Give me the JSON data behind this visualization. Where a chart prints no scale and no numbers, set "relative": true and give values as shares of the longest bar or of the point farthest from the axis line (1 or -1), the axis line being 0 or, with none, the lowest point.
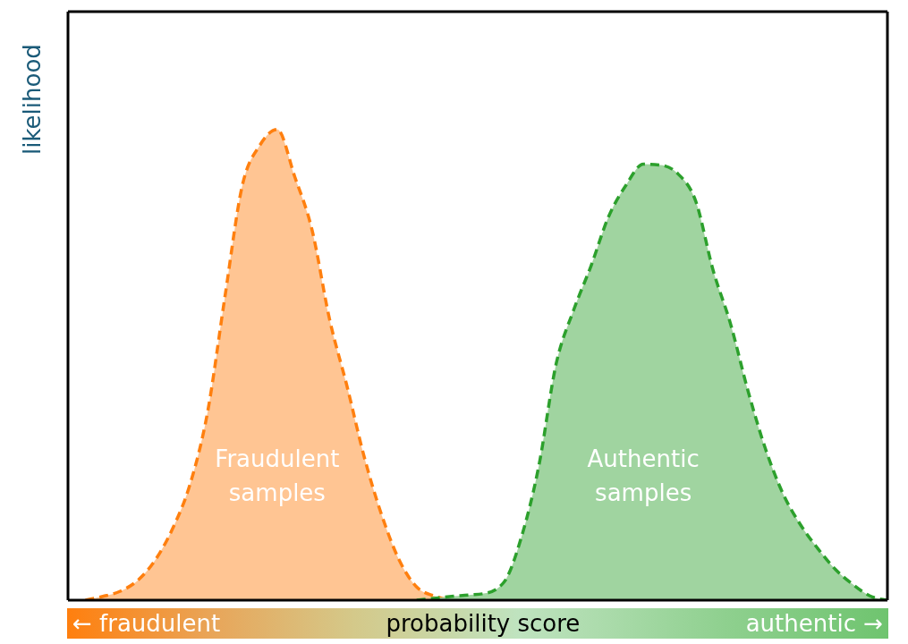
{
  "chart_data": {
    "type": "area",
    "relative": true,
    "xlabel": "probability score",
    "ylabel": "likelihood",
    "annotations": [
      "← fraudulent",
      "authentic →"
    ],
    "categories": [
      null,
      null,
      null,
      null,
      null,
      null,
      null,
      null,
      null,
      null,
      null,
      null,
      null,
      null,
      null,
      null,
      null,
      null,
      null,
      null,
      null,
      null,
      null,
      null,
      null,
      null,
      null,
      null,
      null,
      null,
      null,
      null,
      null,
      null,
      null,
      null,
      null,
      null,
      null,
      null,
      null,
      null,
      null,
      null,
      null,
      null,
      null,
      null
    ],
    "series": [
      {
        "name": "Fraudulent samples",
        "color": "#ff7f0e",
        "values": [
          null,
          0,
          0.008,
          0.019,
          0.042,
          0.085,
          0.152,
          0.246,
          0.398,
          0.644,
          0.881,
          0.966,
          1,
          0.9,
          0.786,
          0.597,
          0.455,
          0.303,
          0.18,
          0.085,
          0.028,
          0.009,
          0,
          null,
          null,
          null,
          null,
          null,
          null,
          null,
          null,
          null,
          null,
          null,
          null,
          null,
          null,
          null,
          null,
          null,
          null,
          null,
          null,
          null,
          null,
          null,
          null,
          null
        ]
      },
      {
        "name": "Authentic samples",
        "color": "#2ca02c",
        "values": [
          null,
          null,
          null,
          null,
          null,
          null,
          null,
          null,
          null,
          null,
          null,
          null,
          null,
          null,
          null,
          null,
          null,
          null,
          null,
          null,
          0,
          0.004,
          0.008,
          0.011,
          0.015,
          0.038,
          0.133,
          0.284,
          0.502,
          0.616,
          0.71,
          0.814,
          0.881,
          0.926,
          0.924,
          0.905,
          0.848,
          0.701,
          0.587,
          0.445,
          0.322,
          0.227,
          0.161,
          0.11,
          0.066,
          0.034,
          0.009,
          0
        ]
      }
    ],
    "line_style": "dashed",
    "marker": "none",
    "grid": false
  }
}
